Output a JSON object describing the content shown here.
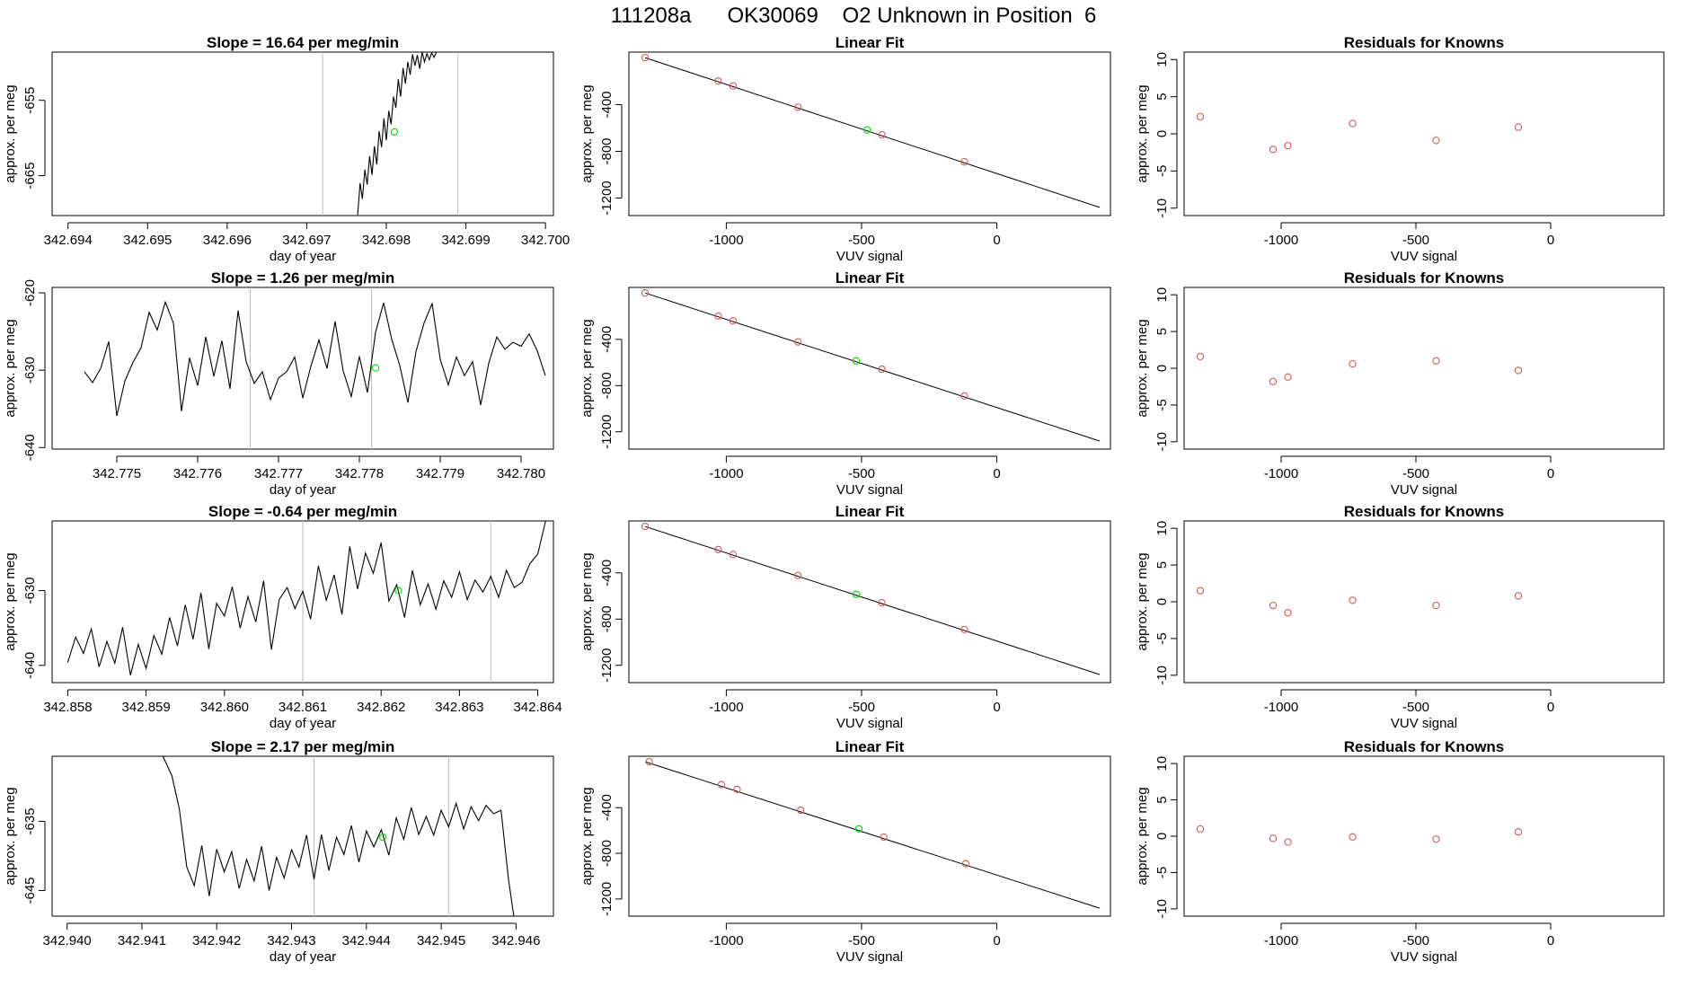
{
  "page_title": "111208a      OK30069    O2 Unknown in Position  6",
  "colors": {
    "line": "#000000",
    "grid_vline": "#bebebe",
    "known_point": "#cd5c5c",
    "unknown_point": "#00dd00",
    "axis": "#000000"
  },
  "chart_data": [
    {
      "type": "line",
      "row": 1,
      "title": "Slope =  16.64  per meg/min",
      "xlabel": "day of year",
      "ylabel": "approx. per meg",
      "xlim": [
        342.6938,
        342.7001
      ],
      "ylim": [
        -670.3,
        -648.6
      ],
      "xticks": [
        "342.694",
        "342.695",
        "342.696",
        "342.697",
        "342.698",
        "342.699",
        "342.700"
      ],
      "yticks": [
        "-655",
        "-665"
      ],
      "ytick_values": [
        -655,
        -665
      ],
      "vlines": [
        342.6972,
        342.6989
      ],
      "unknown_point": [
        342.6981,
        -659.2
      ],
      "x": [
        342.69764,
        342.69767,
        342.6977,
        342.69773,
        342.69776,
        342.69779,
        342.69782,
        342.69785,
        342.69788,
        342.69791,
        342.69794,
        342.69797,
        342.698,
        342.69803,
        342.69806,
        342.69809,
        342.69812,
        342.69815,
        342.69818,
        342.69821,
        342.69824,
        342.69827,
        342.6983,
        342.69833,
        342.69836,
        342.69839,
        342.69842,
        342.69845,
        342.69848,
        342.69851,
        342.69854,
        342.69857,
        342.6986,
        342.69863
      ],
      "y": [
        -670.2,
        -666.0,
        -668.1,
        -664.2,
        -666.2,
        -662.4,
        -664.9,
        -661.1,
        -663.5,
        -659.1,
        -661.2,
        -657.4,
        -660.3,
        -656.4,
        -658.2,
        -654.5,
        -656.0,
        -652.2,
        -654.5,
        -650.7,
        -652.8,
        -649.9,
        -651.6,
        -648.9,
        -650.4,
        -649.0,
        -650.8,
        -648.6,
        -649.9,
        -648.8,
        -649.6,
        -648.7,
        -649.3,
        -648.6
      ]
    },
    {
      "type": "line",
      "row": 2,
      "title": "Slope =  1.26  per meg/min",
      "xlabel": "day of year",
      "ylabel": "approx. per meg",
      "xlim": [
        342.7742,
        342.7804
      ],
      "ylim": [
        -640.2,
        -619.3
      ],
      "xticks": [
        "342.775",
        "342.776",
        "342.777",
        "342.778",
        "342.779",
        "342.780"
      ],
      "yticks": [
        "-620",
        "-630",
        "-640"
      ],
      "ytick_values": [
        -620,
        -630,
        -640
      ],
      "vlines": [
        342.77665,
        342.77815
      ],
      "unknown_point": [
        342.7782,
        -629.7
      ],
      "x": [
        342.7746,
        342.7747,
        342.7748,
        342.7749,
        342.775,
        342.7751,
        342.7752,
        342.7753,
        342.7754,
        342.7755,
        342.7756,
        342.7757,
        342.7758,
        342.7759,
        342.776,
        342.7761,
        342.7762,
        342.7763,
        342.7764,
        342.7765,
        342.7766,
        342.7767,
        342.7768,
        342.7769,
        342.777,
        342.7771,
        342.7772,
        342.7773,
        342.7774,
        342.7775,
        342.7776,
        342.7777,
        342.7778,
        342.7779,
        342.778,
        342.7781,
        342.7782,
        342.7783,
        342.7784,
        342.7785,
        342.7786,
        342.7787,
        342.7788,
        342.7789,
        342.779,
        342.7791,
        342.7792,
        342.7793,
        342.7794,
        342.7795,
        342.7796,
        342.7797,
        342.7798,
        342.7799,
        342.78,
        342.7801,
        342.7802,
        342.7803
      ],
      "y": [
        -630.2,
        -631.6,
        -629.8,
        -626.3,
        -635.9,
        -631.4,
        -629.0,
        -627.1,
        -622.5,
        -624.8,
        -621.2,
        -623.9,
        -635.3,
        -628.4,
        -632.0,
        -625.7,
        -630.8,
        -626.2,
        -632.4,
        -622.3,
        -628.9,
        -631.7,
        -630.2,
        -633.8,
        -631.0,
        -630.2,
        -628.3,
        -633.6,
        -629.5,
        -626.1,
        -629.8,
        -623.7,
        -630.1,
        -633.4,
        -628.2,
        -632.9,
        -625.1,
        -621.3,
        -626.0,
        -629.4,
        -634.2,
        -627.6,
        -623.9,
        -621.4,
        -628.6,
        -631.9,
        -628.3,
        -630.7,
        -628.9,
        -634.5,
        -629.1,
        -625.7,
        -627.3,
        -626.4,
        -626.9,
        -625.3,
        -627.5,
        -630.7
      ]
    },
    {
      "type": "line",
      "row": 3,
      "title": "Slope =  -0.64  per meg/min",
      "xlabel": "day of year",
      "ylabel": "approx. per meg",
      "xlim": [
        342.8578,
        342.8642
      ],
      "ylim": [
        -642.3,
        -620.7
      ],
      "xticks": [
        "342.858",
        "342.859",
        "342.860",
        "342.861",
        "342.862",
        "342.863",
        "342.864"
      ],
      "yticks": [
        "-630",
        "-640"
      ],
      "ytick_values": [
        -630,
        -640
      ],
      "vlines": [
        342.861,
        342.8634
      ],
      "unknown_point": [
        342.86222,
        -630.0
      ],
      "x": [
        342.858,
        342.8581,
        342.8582,
        342.8583,
        342.8584,
        342.8585,
        342.8586,
        342.8587,
        342.8588,
        342.8589,
        342.859,
        342.8591,
        342.8592,
        342.8593,
        342.8594,
        342.8595,
        342.8596,
        342.8597,
        342.8598,
        342.8599,
        342.86,
        342.8601,
        342.8602,
        342.8603,
        342.8604,
        342.8605,
        342.8606,
        342.8607,
        342.8608,
        342.8609,
        342.861,
        342.8611,
        342.8612,
        342.8613,
        342.8614,
        342.8615,
        342.8616,
        342.8617,
        342.8618,
        342.8619,
        342.862,
        342.8621,
        342.8622,
        342.8623,
        342.8624,
        342.8625,
        342.8626,
        342.8627,
        342.8628,
        342.8629,
        342.863,
        342.8631,
        342.8632,
        342.8633,
        342.8634,
        342.8635,
        342.8636,
        342.8637,
        342.8638,
        342.8639,
        342.864,
        342.8641
      ],
      "y": [
        -639.6,
        -636.2,
        -638.4,
        -635.1,
        -640.2,
        -636.8,
        -639.7,
        -634.9,
        -641.3,
        -637.2,
        -640.4,
        -636.0,
        -638.5,
        -633.6,
        -637.4,
        -631.9,
        -636.5,
        -630.3,
        -637.8,
        -631.7,
        -633.4,
        -629.5,
        -635.0,
        -630.8,
        -634.2,
        -628.7,
        -637.9,
        -631.2,
        -629.6,
        -632.4,
        -630.1,
        -633.8,
        -626.7,
        -631.3,
        -627.9,
        -633.2,
        -624.1,
        -629.8,
        -625.0,
        -627.7,
        -623.6,
        -631.4,
        -629.2,
        -633.6,
        -627.3,
        -631.9,
        -629.1,
        -632.5,
        -628.7,
        -630.9,
        -627.5,
        -631.2,
        -628.6,
        -630.2,
        -628.1,
        -630.9,
        -627.3,
        -629.6,
        -628.9,
        -626.4,
        -625.1,
        -620.7
      ]
    },
    {
      "type": "line",
      "row": 4,
      "title": "Slope =  2.17  per meg/min",
      "xlabel": "day of year",
      "ylabel": "approx. per meg",
      "xlim": [
        342.9398,
        342.9465
      ],
      "ylim": [
        -648.7,
        -625.6
      ],
      "xticks": [
        "342.940",
        "342.941",
        "342.942",
        "342.943",
        "342.944",
        "342.945",
        "342.946"
      ],
      "yticks": [
        "-635",
        "-645"
      ],
      "ytick_values": [
        -635,
        -645
      ],
      "vlines": [
        342.9433,
        342.9451
      ],
      "unknown_point": [
        342.94422,
        -637.3
      ],
      "x": [
        342.94128,
        342.9414,
        342.9415,
        342.9416,
        342.9417,
        342.9418,
        342.9419,
        342.942,
        342.9421,
        342.9422,
        342.9423,
        342.9424,
        342.9425,
        342.9426,
        342.9427,
        342.9428,
        342.9429,
        342.943,
        342.9431,
        342.9432,
        342.9433,
        342.9434,
        342.9435,
        342.9436,
        342.9437,
        342.9438,
        342.9439,
        342.944,
        342.9441,
        342.9442,
        342.9443,
        342.9444,
        342.9445,
        342.9446,
        342.9447,
        342.9448,
        342.9449,
        342.945,
        342.9451,
        342.9452,
        342.9453,
        342.9454,
        342.9455,
        342.9456,
        342.9457,
        342.9458,
        342.9459,
        342.94597
      ],
      "y": [
        -625.6,
        -628.4,
        -633.2,
        -641.6,
        -644.3,
        -638.5,
        -645.8,
        -639.0,
        -642.3,
        -639.4,
        -644.7,
        -640.5,
        -643.6,
        -638.6,
        -645.0,
        -640.2,
        -643.2,
        -639.1,
        -641.6,
        -637.0,
        -643.4,
        -636.9,
        -642.1,
        -637.3,
        -639.8,
        -635.6,
        -640.9,
        -636.4,
        -638.7,
        -636.2,
        -639.9,
        -634.5,
        -637.6,
        -633.0,
        -636.9,
        -634.3,
        -637.0,
        -633.4,
        -635.8,
        -632.4,
        -636.1,
        -632.9,
        -634.9,
        -632.7,
        -633.9,
        -633.4,
        -643.4,
        -648.7
      ]
    }
  ],
  "fit_panels": [
    {
      "title": "Linear Fit",
      "xlabel": "VUV signal",
      "ylabel": "approx. per meg",
      "xlim": [
        -1360,
        420
      ],
      "ylim": [
        -1350,
        50
      ],
      "xticks": [
        "-1000",
        "-500",
        "0"
      ],
      "xtick_values": [
        -1000,
        -500,
        0
      ],
      "yticks": [
        "-400",
        "-800",
        "-1200"
      ],
      "ytick_values": [
        -400,
        -800,
        -1200
      ],
      "line": [
        [
          -1300,
          2
        ],
        [
          380,
          -1280
        ]
      ],
      "known_points": [
        [
          -1300,
          2
        ],
        [
          -1030,
          -198
        ],
        [
          -975,
          -240
        ],
        [
          -735,
          -422
        ],
        [
          -425,
          -658
        ],
        [
          -120,
          -890
        ]
      ],
      "unknown_point": [
        -480,
        -617
      ]
    },
    {
      "title": "Linear Fit",
      "xlabel": "VUV signal",
      "ylabel": "approx. per meg",
      "xlim": [
        -1360,
        420
      ],
      "ylim": [
        -1350,
        50
      ],
      "xticks": [
        "-1000",
        "-500",
        "0"
      ],
      "xtick_values": [
        -1000,
        -500,
        0
      ],
      "yticks": [
        "-400",
        "-800",
        "-1200"
      ],
      "ytick_values": [
        -400,
        -800,
        -1200
      ],
      "line": [
        [
          -1300,
          2
        ],
        [
          380,
          -1280
        ]
      ],
      "known_points": [
        [
          -1300,
          2
        ],
        [
          -1030,
          -198
        ],
        [
          -975,
          -240
        ],
        [
          -735,
          -422
        ],
        [
          -425,
          -658
        ],
        [
          -120,
          -890
        ]
      ],
      "unknown_point": [
        -520,
        -586
      ]
    },
    {
      "title": "Linear Fit",
      "xlabel": "VUV signal",
      "ylabel": "approx. per meg",
      "xlim": [
        -1360,
        420
      ],
      "ylim": [
        -1350,
        50
      ],
      "xticks": [
        "-1000",
        "-500",
        "0"
      ],
      "xtick_values": [
        -1000,
        -500,
        0
      ],
      "yticks": [
        "-400",
        "-800",
        "-1200"
      ],
      "ytick_values": [
        -400,
        -800,
        -1200
      ],
      "line": [
        [
          -1300,
          2
        ],
        [
          380,
          -1280
        ]
      ],
      "known_points": [
        [
          -1300,
          2
        ],
        [
          -1030,
          -198
        ],
        [
          -975,
          -240
        ],
        [
          -735,
          -422
        ],
        [
          -425,
          -658
        ],
        [
          -120,
          -890
        ]
      ],
      "unknown_point": [
        -520,
        -586
      ]
    },
    {
      "title": "Linear Fit",
      "xlabel": "VUV signal",
      "ylabel": "approx. per meg",
      "xlim": [
        -1360,
        420
      ],
      "ylim": [
        -1350,
        50
      ],
      "xticks": [
        "-1000",
        "-500",
        "0"
      ],
      "xtick_values": [
        -1000,
        -500,
        0
      ],
      "yticks": [
        "-400",
        "-800",
        "-1200"
      ],
      "ytick_values": [
        -400,
        -800,
        -1200
      ],
      "line": [
        [
          -1300,
          2
        ],
        [
          380,
          -1280
        ]
      ],
      "known_points": [
        [
          -1285,
          2
        ],
        [
          -1018,
          -198
        ],
        [
          -960,
          -240
        ],
        [
          -725,
          -422
        ],
        [
          -418,
          -658
        ],
        [
          -115,
          -890
        ]
      ],
      "unknown_point": [
        -510,
        -586
      ]
    }
  ],
  "residual_panels": [
    {
      "title": "Residuals for Knowns",
      "xlabel": "VUV signal",
      "ylabel": "approx. per meg",
      "xlim": [
        -1360,
        420
      ],
      "ylim": [
        -11,
        11
      ],
      "xticks": [
        "-1000",
        "-500",
        "0"
      ],
      "xtick_values": [
        -1000,
        -500,
        0
      ],
      "yticks": [
        "10",
        "5",
        "0",
        "-5",
        "-10"
      ],
      "ytick_values": [
        10,
        5,
        0,
        -5,
        -10
      ],
      "points": [
        [
          -1300,
          2.3
        ],
        [
          -1030,
          -2.1
        ],
        [
          -975,
          -1.6
        ],
        [
          -735,
          1.4
        ],
        [
          -425,
          -0.9
        ],
        [
          -120,
          0.9
        ]
      ]
    },
    {
      "title": "Residuals for Knowns",
      "xlabel": "VUV signal",
      "ylabel": "approx. per meg",
      "xlim": [
        -1360,
        420
      ],
      "ylim": [
        -11,
        11
      ],
      "xticks": [
        "-1000",
        "-500",
        "0"
      ],
      "xtick_values": [
        -1000,
        -500,
        0
      ],
      "yticks": [
        "10",
        "5",
        "0",
        "-5",
        "-10"
      ],
      "ytick_values": [
        10,
        5,
        0,
        -5,
        -10
      ],
      "points": [
        [
          -1300,
          1.6
        ],
        [
          -1030,
          -1.8
        ],
        [
          -975,
          -1.2
        ],
        [
          -735,
          0.6
        ],
        [
          -425,
          1.0
        ],
        [
          -120,
          -0.3
        ]
      ]
    },
    {
      "title": "Residuals for Knowns",
      "xlabel": "VUV signal",
      "ylabel": "approx. per meg",
      "xlim": [
        -1360,
        420
      ],
      "ylim": [
        -11,
        11
      ],
      "xticks": [
        "-1000",
        "-500",
        "0"
      ],
      "xtick_values": [
        -1000,
        -500,
        0
      ],
      "yticks": [
        "10",
        "5",
        "0",
        "-5",
        "-10"
      ],
      "ytick_values": [
        10,
        5,
        0,
        -5,
        -10
      ],
      "points": [
        [
          -1300,
          1.5
        ],
        [
          -1030,
          -0.5
        ],
        [
          -975,
          -1.5
        ],
        [
          -735,
          0.2
        ],
        [
          -425,
          -0.5
        ],
        [
          -120,
          0.8
        ]
      ]
    },
    {
      "title": "Residuals for Knowns",
      "xlabel": "VUV signal",
      "ylabel": "approx. per meg",
      "xlim": [
        -1360,
        420
      ],
      "ylim": [
        -11,
        11
      ],
      "xticks": [
        "-1000",
        "-500",
        "0"
      ],
      "xtick_values": [
        -1000,
        -500,
        0
      ],
      "yticks": [
        "10",
        "5",
        "0",
        "-5",
        "-10"
      ],
      "ytick_values": [
        10,
        5,
        0,
        -5,
        -10
      ],
      "points": [
        [
          -1300,
          1.0
        ],
        [
          -1030,
          -0.3
        ],
        [
          -975,
          -0.8
        ],
        [
          -735,
          -0.1
        ],
        [
          -425,
          -0.4
        ],
        [
          -120,
          0.6
        ]
      ]
    }
  ]
}
